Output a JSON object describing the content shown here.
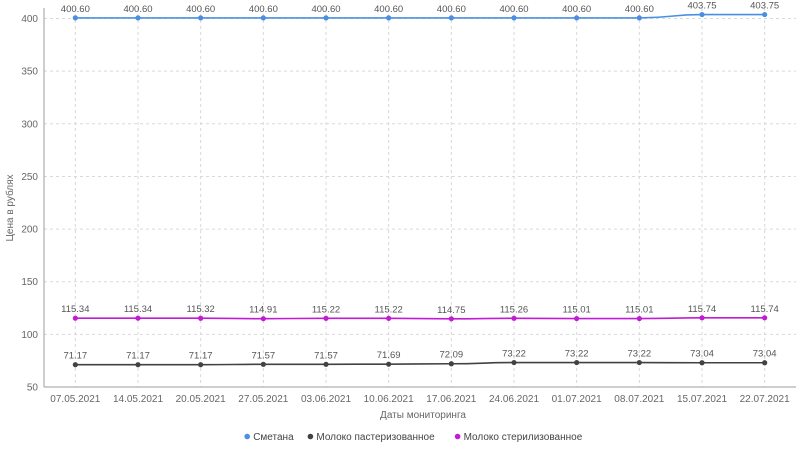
{
  "chart_data": {
    "type": "line",
    "title": "",
    "xlabel": "Даты мониторинга",
    "ylabel": "Цена в рублях",
    "ylim": [
      50,
      410
    ],
    "yticks": [
      50,
      100,
      150,
      200,
      250,
      300,
      350,
      400
    ],
    "grid": true,
    "legend_position": "bottom",
    "categories": [
      "07.05.2021",
      "14.05.2021",
      "20.05.2021",
      "27.05.2021",
      "03.06.2021",
      "10.06.2021",
      "17.06.2021",
      "24.06.2021",
      "01.07.2021",
      "08.07.2021",
      "15.07.2021",
      "22.07.2021"
    ],
    "series": [
      {
        "name": "Сметана",
        "color": "#4a90e2",
        "values": [
          400.6,
          400.6,
          400.6,
          400.6,
          400.6,
          400.6,
          400.6,
          400.6,
          400.6,
          400.6,
          403.75,
          403.75
        ],
        "labels": [
          "400.60",
          "400.60",
          "400.60",
          "400.60",
          "400.60",
          "400.60",
          "400.60",
          "400.60",
          "400.60",
          "400.60",
          "403.75",
          "403.75"
        ]
      },
      {
        "name": "Молоко пастеризованное",
        "color": "#424242",
        "values": [
          71.17,
          71.17,
          71.17,
          71.57,
          71.57,
          71.69,
          72.09,
          73.22,
          73.22,
          73.22,
          73.04,
          73.04
        ],
        "labels": [
          "71.17",
          "71.17",
          "71.17",
          "71.57",
          "71.57",
          "71.69",
          "72.09",
          "73.22",
          "73.22",
          "73.22",
          "73.04",
          "73.04"
        ]
      },
      {
        "name": "Молоко стерилизованное",
        "color": "#c21bd4",
        "values": [
          115.34,
          115.34,
          115.32,
          114.91,
          115.22,
          115.22,
          114.75,
          115.26,
          115.01,
          115.01,
          115.74,
          115.74
        ],
        "labels": [
          "115.34",
          "115.34",
          "115.32",
          "114.91",
          "115.22",
          "115.22",
          "114.75",
          "115.26",
          "115.01",
          "115.01",
          "115.74",
          "115.74"
        ]
      }
    ]
  }
}
